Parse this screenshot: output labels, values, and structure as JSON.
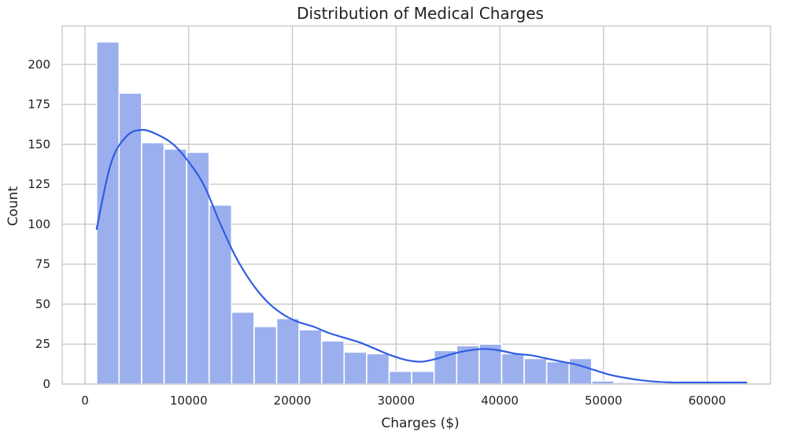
{
  "chart_data": {
    "type": "bar",
    "subtype": "histogram-with-kde",
    "title": "Distribution of Medical Charges",
    "xlabel": "Charges ($)",
    "ylabel": "Count",
    "xlim": [
      -2200,
      66100
    ],
    "ylim": [
      0,
      224
    ],
    "xticks": [
      0,
      10000,
      20000,
      30000,
      40000,
      50000,
      60000
    ],
    "xtick_labels": [
      "0",
      "10000",
      "20000",
      "30000",
      "40000",
      "50000",
      "60000"
    ],
    "yticks": [
      0,
      25,
      50,
      75,
      100,
      125,
      150,
      175,
      200
    ],
    "ytick_labels": [
      "0",
      "25",
      "50",
      "75",
      "100",
      "125",
      "150",
      "175",
      "200"
    ],
    "grid": true,
    "bins": {
      "start": 1122,
      "width": 2170,
      "counts": [
        214,
        182,
        151,
        147,
        145,
        112,
        45,
        36,
        41,
        34,
        27,
        20,
        19,
        8,
        8,
        21,
        24,
        25,
        19,
        16,
        14,
        16,
        2,
        1,
        1,
        0,
        0,
        0,
        1
      ]
    },
    "kde": {
      "x": [
        1122,
        2500,
        4000,
        5500,
        7000,
        8500,
        10000,
        11500,
        13000,
        14500,
        16000,
        17500,
        19000,
        20500,
        22000,
        23500,
        25000,
        26500,
        28000,
        29500,
        31000,
        32500,
        34000,
        35500,
        37000,
        38500,
        40000,
        41500,
        43000,
        44500,
        46000,
        47500,
        49000,
        50500,
        52000,
        53500,
        55000,
        56500,
        58000,
        60000,
        62000,
        63770
      ],
      "y": [
        97,
        138,
        155,
        159,
        156,
        150,
        139,
        124,
        101,
        80,
        64,
        52,
        44,
        39,
        36,
        32,
        29,
        26,
        22,
        18,
        15,
        14,
        16,
        19,
        21,
        22,
        21,
        19,
        18,
        16,
        14,
        12,
        9,
        6,
        4,
        2.5,
        1.5,
        1,
        1,
        1,
        1,
        1
      ]
    },
    "colors": {
      "bar_fill": "#9bafee",
      "bar_edge": "#ffffff",
      "kde_line": "#2f5de3",
      "grid": "#c6c6c6",
      "frame": "#c6c6c6"
    }
  }
}
